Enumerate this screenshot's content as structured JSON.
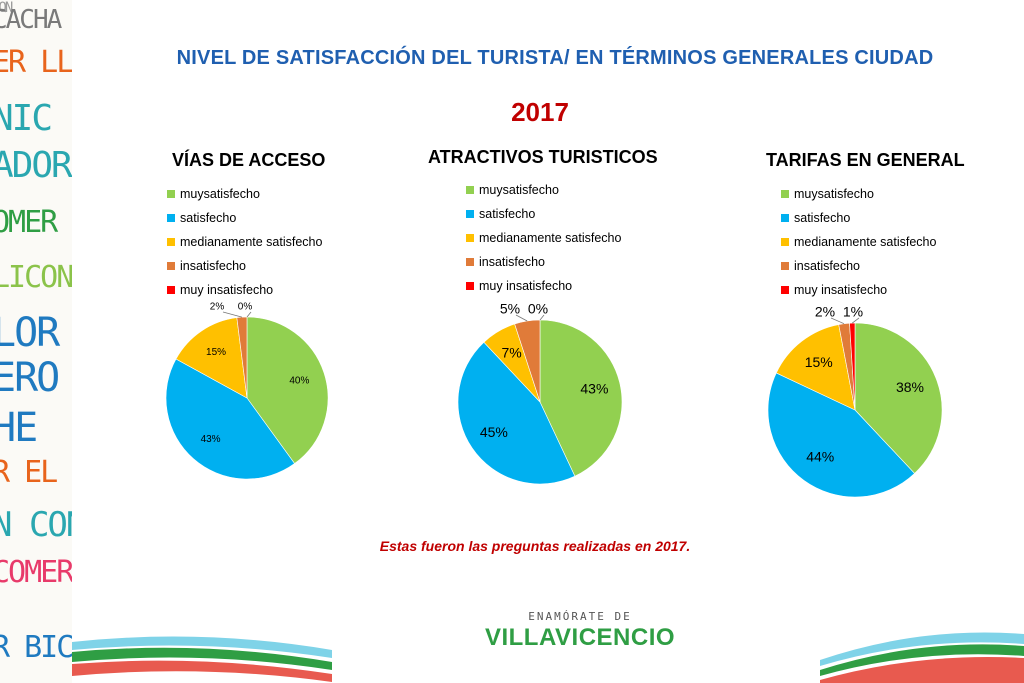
{
  "title": "NIVEL DE SATISFACCIÓN DEL TURISTA/ EN TÉRMINOS GENERALES CIUDAD",
  "year": "2017",
  "footnote": "Estas fueron las preguntas realizadas en 2017.",
  "brand": {
    "top": "ENAMÓRATE DE",
    "main": "VILLAVICENCIO"
  },
  "side_words": [
    {
      "text": "CON",
      "color": "#9a9a9a"
    },
    {
      "text": "CACHA",
      "color": "#7a7a7a"
    },
    {
      "text": "ER LLAN",
      "color": "#e8641c"
    },
    {
      "text": "NIC",
      "color": "#2aa7b0"
    },
    {
      "text": "ADORE",
      "color": "#2aa7b0"
    },
    {
      "text": "OMER EL F",
      "color": "#2f9e44"
    },
    {
      "text": "LICONT",
      "color": "#8bc34a"
    },
    {
      "text": "LOR",
      "color": "#1f7ac0"
    },
    {
      "text": "ERO",
      "color": "#1f7ac0"
    },
    {
      "text": "HE",
      "color": "#1f7ac0"
    },
    {
      "text": "R EL PARQ",
      "color": "#e8641c"
    },
    {
      "text": "N CON",
      "color": "#2aa7b0"
    },
    {
      "text": "COMER",
      "color": "#e83a6a"
    },
    {
      "text": "R BICIC",
      "color": "#1f7ac0"
    }
  ],
  "colors": {
    "muysatisfecho": "#92d050",
    "satisfecho": "#00b0f0",
    "medianamente": "#ffc000",
    "insatisfecho": "#e07b39",
    "muy_insatisfecho": "#ff0000"
  },
  "chart_data": [
    {
      "type": "pie",
      "title": "VÍAS DE ACCESO",
      "categories": [
        "muysatisfecho",
        "satisfecho",
        "medianamente satisfecho",
        "insatisfecho",
        "muy insatisfecho"
      ],
      "values": [
        40,
        43,
        15,
        2,
        0
      ],
      "labels": [
        "40%",
        "43%",
        "15%",
        "2%",
        "0%"
      ]
    },
    {
      "type": "pie",
      "title": "ATRACTIVOS TURISTICOS",
      "categories": [
        "muysatisfecho",
        "satisfecho",
        "medianamente satisfecho",
        "insatisfecho",
        "muy insatisfecho"
      ],
      "values": [
        43,
        45,
        7,
        5,
        0
      ],
      "labels": [
        "43%",
        "45%",
        "7%",
        "5%",
        "0%"
      ]
    },
    {
      "type": "pie",
      "title": "TARIFAS EN GENERAL",
      "categories": [
        "muysatisfecho",
        "satisfecho",
        "medianamente satisfecho",
        "insatisfecho",
        "muy insatisfecho"
      ],
      "values": [
        38,
        44,
        15,
        2,
        1
      ],
      "labels": [
        "38%",
        "44%",
        "15%",
        "2%",
        "1%"
      ]
    }
  ]
}
